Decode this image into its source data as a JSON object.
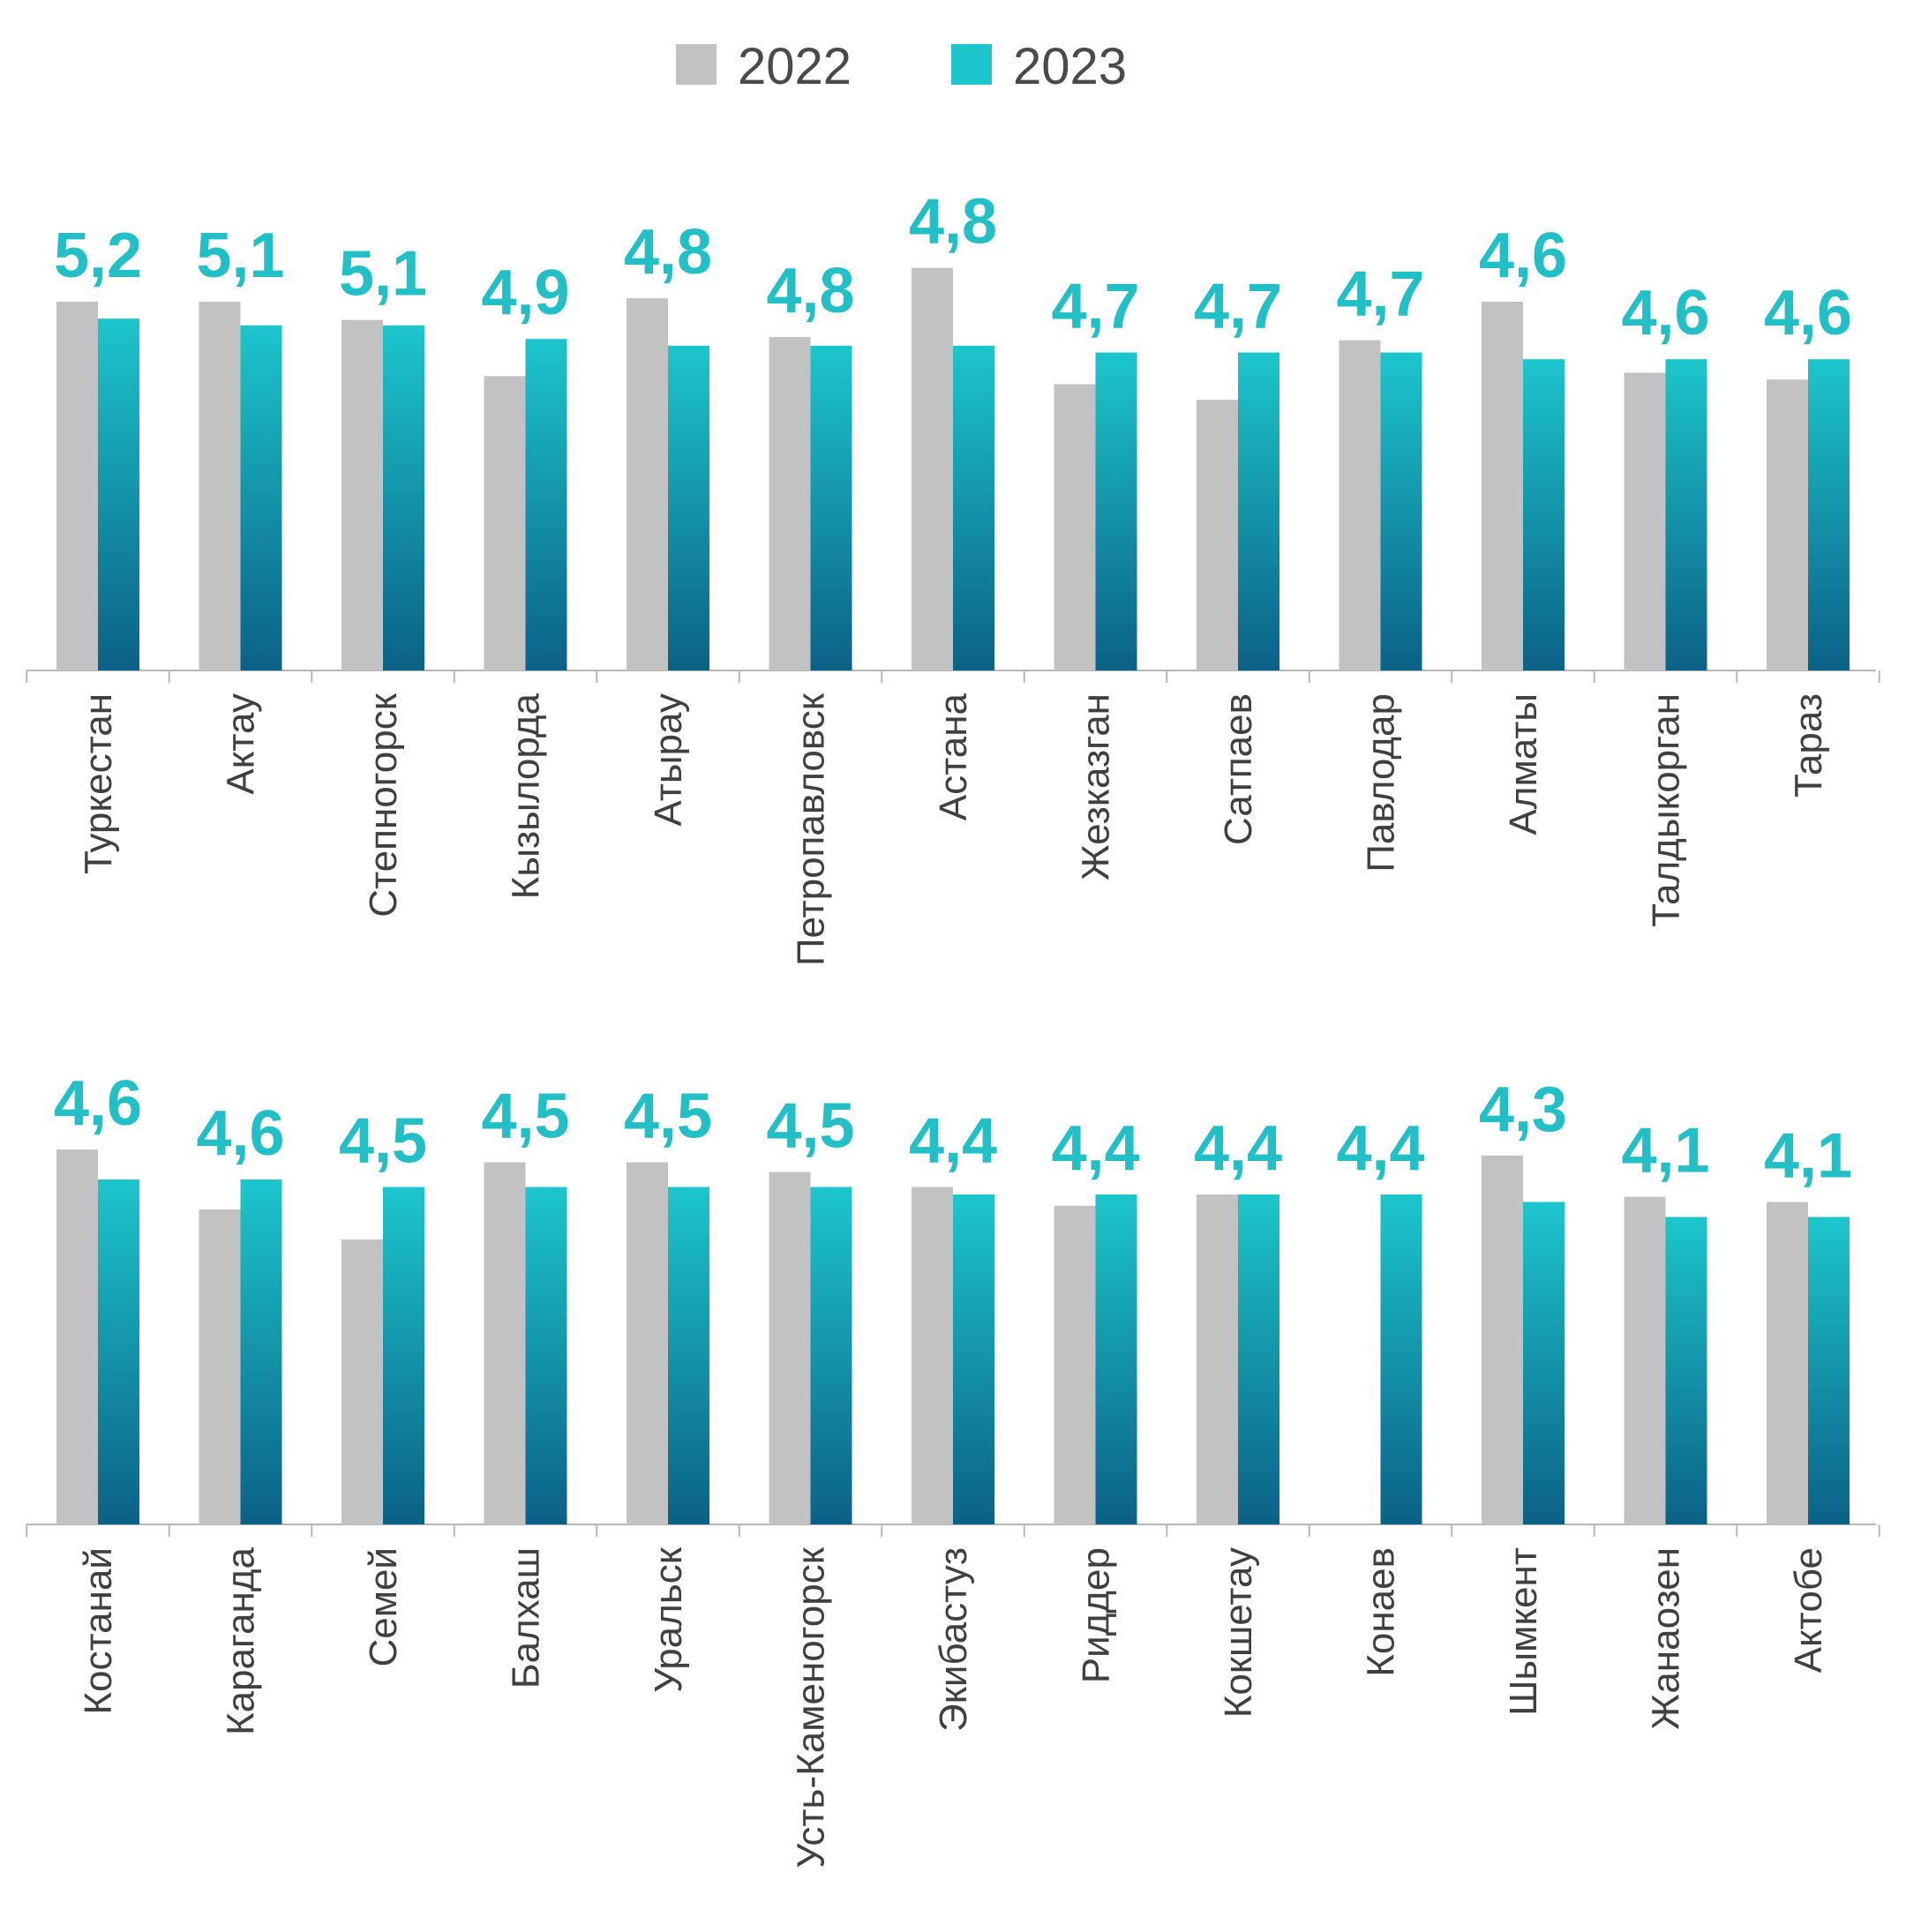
{
  "colors": {
    "series_2022": "#c2c2c2",
    "series_2023_top": "#1cc6cc",
    "series_2023_bottom": "#0b6187",
    "label": "#22bfc6",
    "axis": "#b8b8b8",
    "text": "#404040"
  },
  "legend": {
    "position": "top-center",
    "items": [
      {
        "label": "2022",
        "color": "#c2c2c2"
      },
      {
        "label": "2023",
        "color": "#1cc6cc"
      }
    ]
  },
  "chart_data": [
    {
      "type": "bar",
      "categories": [
        "Туркестан",
        "Актау",
        "Степногорск",
        "Кызылорда",
        "Атырау",
        "Петропавловск",
        "Астана",
        "Жезказган",
        "Сатпаев",
        "Павлодар",
        "Алматы",
        "Талдыкорган",
        "Тараз"
      ],
      "series": [
        {
          "name": "2022",
          "values": [
            5.45,
            5.45,
            5.18,
            4.35,
            5.5,
            4.93,
            5.95,
            4.23,
            4.0,
            4.88,
            5.45,
            4.4,
            4.3
          ]
        },
        {
          "name": "2023",
          "values": [
            5.2,
            5.1,
            5.1,
            4.9,
            4.8,
            4.8,
            4.8,
            4.7,
            4.7,
            4.7,
            4.6,
            4.6,
            4.6
          ]
        }
      ],
      "data_labels": [
        "5,2",
        "5,1",
        "5,1",
        "4,9",
        "4,8",
        "4,8",
        "4,8",
        "4,7",
        "4,7",
        "4,7",
        "4,6",
        "4,6",
        "4,6"
      ],
      "ylim": [
        0,
        8
      ],
      "grid": false
    },
    {
      "type": "bar",
      "categories": [
        "Костанай",
        "Караганда",
        "Семей",
        "Балхаш",
        "Уральск",
        "Усть-Каменогорск",
        "Экибастуз",
        "Риддер",
        "Кокшетау",
        "Конаев",
        "Шымкент",
        "Жанаозен",
        "Актобе"
      ],
      "series": [
        {
          "name": "2022",
          "values": [
            5.0,
            4.2,
            3.8,
            4.83,
            4.83,
            4.7,
            4.5,
            4.25,
            4.4,
            null,
            4.92,
            4.37,
            4.3
          ]
        },
        {
          "name": "2023",
          "values": [
            4.6,
            4.6,
            4.5,
            4.5,
            4.5,
            4.5,
            4.4,
            4.4,
            4.4,
            4.4,
            4.3,
            4.1,
            4.1
          ]
        }
      ],
      "data_labels": [
        "4,6",
        "4,6",
        "4,5",
        "4,5",
        "4,5",
        "4,5",
        "4,4",
        "4,4",
        "4,4",
        "4,4",
        "4,3",
        "4,1",
        "4,1"
      ],
      "ylim": [
        0,
        6.5
      ],
      "grid": false
    }
  ]
}
